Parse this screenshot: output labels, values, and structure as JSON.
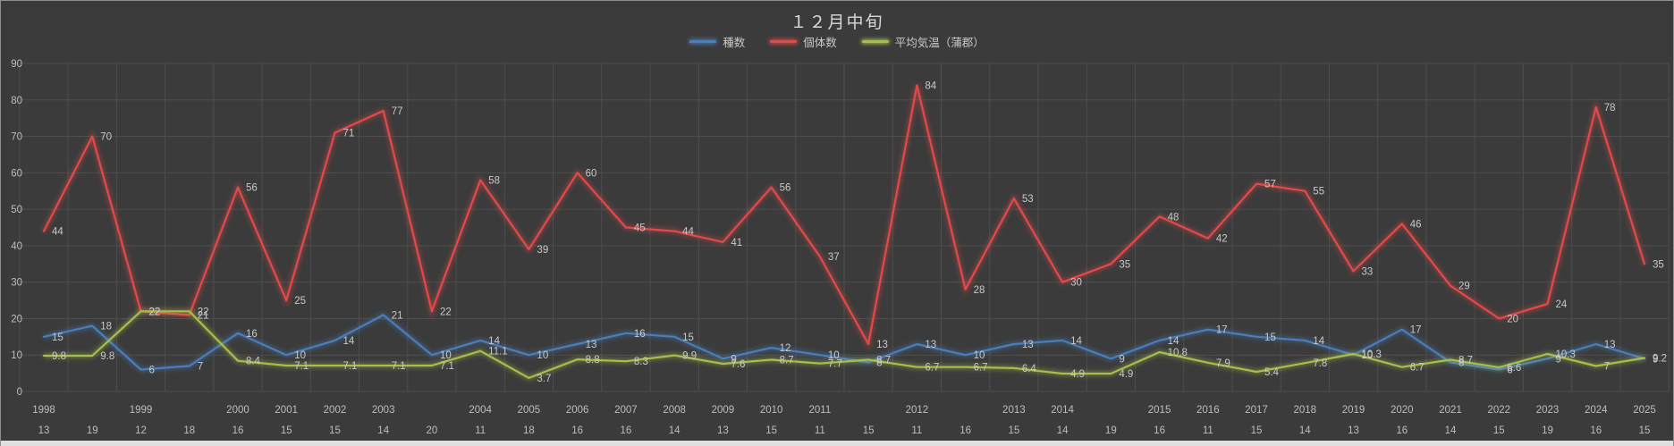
{
  "chart_data": {
    "type": "line",
    "title": "１２月中旬",
    "legend_position": "top",
    "grid": true,
    "ylim": [
      0,
      90
    ],
    "yticks": [
      0,
      10,
      20,
      30,
      40,
      50,
      60,
      70,
      80,
      90
    ],
    "categories": [
      {
        "year": "1998",
        "day": "13"
      },
      {
        "year": "",
        "day": "19"
      },
      {
        "year": "1999",
        "day": "12"
      },
      {
        "year": "",
        "day": "18"
      },
      {
        "year": "2000",
        "day": "16"
      },
      {
        "year": "2001",
        "day": "15"
      },
      {
        "year": "2002",
        "day": "15"
      },
      {
        "year": "2003",
        "day": "14"
      },
      {
        "year": "",
        "day": "20"
      },
      {
        "year": "2004",
        "day": "11"
      },
      {
        "year": "2005",
        "day": "18"
      },
      {
        "year": "2006",
        "day": "16"
      },
      {
        "year": "2007",
        "day": "16"
      },
      {
        "year": "2008",
        "day": "14"
      },
      {
        "year": "2009",
        "day": "13"
      },
      {
        "year": "2010",
        "day": "15"
      },
      {
        "year": "2011",
        "day": "11"
      },
      {
        "year": "",
        "day": "15"
      },
      {
        "year": "2012",
        "day": "11"
      },
      {
        "year": "",
        "day": "16"
      },
      {
        "year": "2013",
        "day": "15"
      },
      {
        "year": "2014",
        "day": "14"
      },
      {
        "year": "",
        "day": "19"
      },
      {
        "year": "2015",
        "day": "16"
      },
      {
        "year": "2016",
        "day": "11"
      },
      {
        "year": "2017",
        "day": "15"
      },
      {
        "year": "2018",
        "day": "14"
      },
      {
        "year": "2019",
        "day": "13"
      },
      {
        "year": "2020",
        "day": "16"
      },
      {
        "year": "2021",
        "day": "14"
      },
      {
        "year": "2022",
        "day": "15"
      },
      {
        "year": "2023",
        "day": "19"
      },
      {
        "year": "2024",
        "day": "16"
      },
      {
        "year": "2025",
        "day": "15"
      }
    ],
    "series": [
      {
        "name": "種数",
        "color": "#4A7EBB",
        "values": [
          15,
          18,
          6,
          7,
          16,
          10,
          14,
          21,
          10,
          14,
          10,
          13,
          16,
          15,
          9,
          12,
          10,
          8,
          13,
          10,
          13,
          14,
          9,
          14,
          17,
          15,
          14,
          10,
          17,
          8,
          6,
          9,
          13,
          9
        ]
      },
      {
        "name": "個体数",
        "color": "#E04A4A",
        "values": [
          44,
          70,
          22,
          21,
          56,
          25,
          71,
          77,
          22,
          58,
          39,
          60,
          45,
          44,
          41,
          56,
          37,
          13,
          84,
          28,
          53,
          30,
          35,
          48,
          42,
          57,
          55,
          33,
          46,
          29,
          20,
          24,
          78,
          35
        ]
      },
      {
        "name": "平均気温（蒲郡）",
        "color": "#A6BE4B",
        "values": [
          9.8,
          9.8,
          22,
          22,
          8.4,
          7.1,
          7.1,
          7.1,
          7.1,
          11.1,
          3.7,
          8.8,
          8.3,
          9.9,
          7.6,
          8.7,
          7.7,
          8.7,
          6.7,
          6.7,
          6.4,
          4.9,
          4.9,
          10.8,
          7.9,
          5.4,
          7.8,
          10.3,
          6.7,
          8.7,
          6.6,
          10.3,
          7,
          9.2
        ]
      }
    ],
    "colors": {
      "background": "#3B3B3B",
      "gridline": "#4E4E4E",
      "axis_text": "#BDBDBD",
      "data_label": "#C9C9C9",
      "title_text": "#D9D9D9"
    }
  }
}
